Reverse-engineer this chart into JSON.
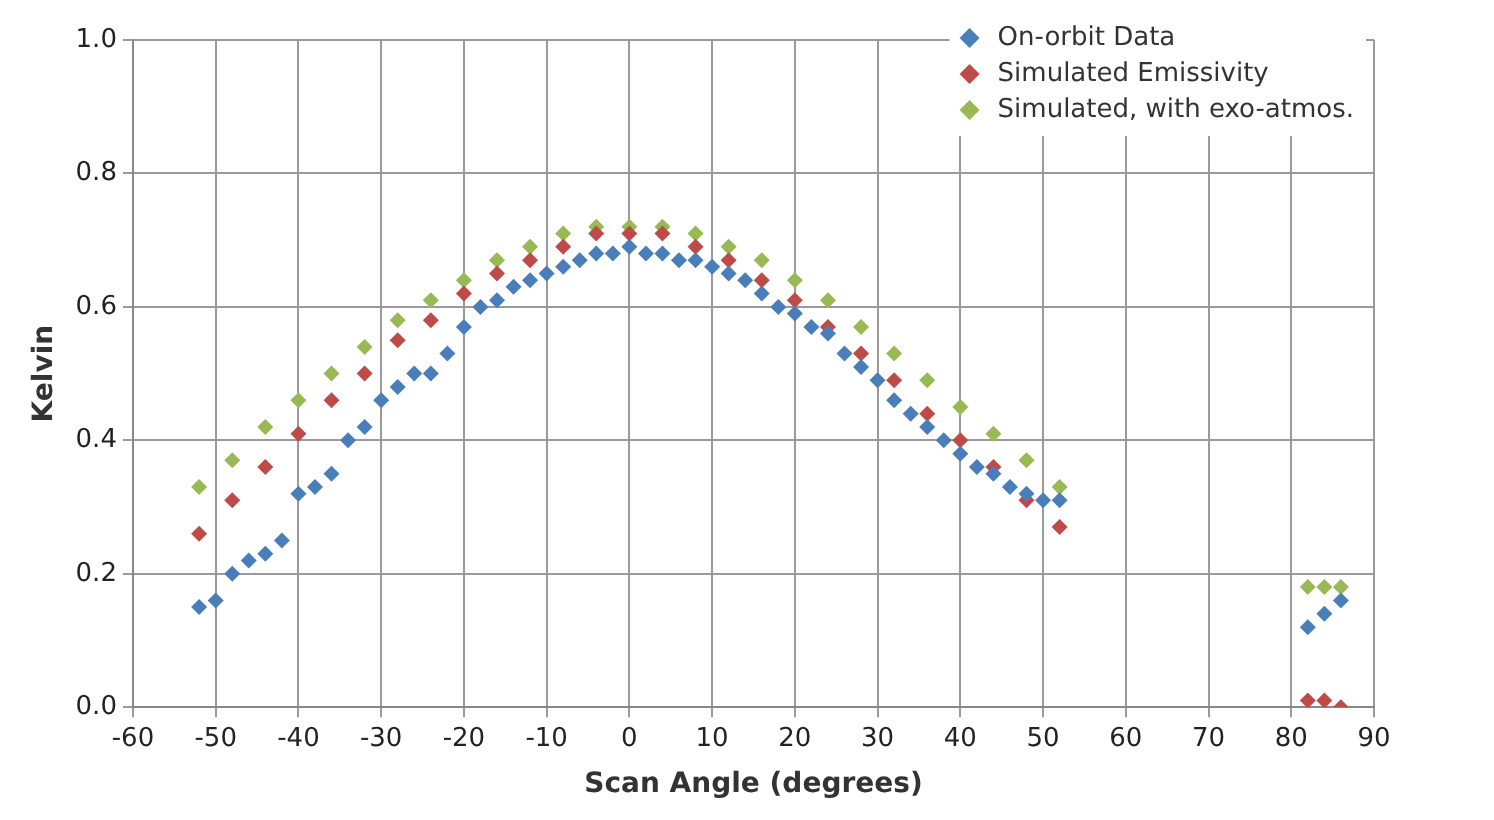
{
  "chart_data": {
    "type": "scatter",
    "xlabel": "Scan Angle (degrees)",
    "ylabel": "Kelvin",
    "xlim": [
      -60,
      90
    ],
    "xticks": [
      -60,
      -50,
      -40,
      -30,
      -20,
      -10,
      0,
      10,
      20,
      30,
      40,
      50,
      60,
      70,
      80,
      90
    ],
    "ylim": [
      0,
      1
    ],
    "yticks": [
      {
        "value": 0,
        "label": "0.0"
      },
      0.2,
      0.4,
      0.6,
      0.8,
      {
        "value": 1,
        "label": "1.0"
      }
    ],
    "grid": true,
    "legend": "top right",
    "marker": "diamond",
    "series": [
      {
        "name": "On-orbit Data",
        "color": "#4a7ebb",
        "x": [
          -52,
          -50,
          -48,
          -46,
          -44,
          -42,
          -40,
          -38,
          -36,
          -34,
          -32,
          -30,
          -28,
          -26,
          -24,
          -22,
          -20,
          -18,
          -16,
          -14,
          -12,
          -10,
          -8,
          -6,
          -4,
          -2,
          0,
          2,
          4,
          6,
          8,
          10,
          12,
          14,
          16,
          18,
          20,
          22,
          24,
          26,
          28,
          30,
          32,
          34,
          36,
          38,
          40,
          42,
          44,
          46,
          48,
          50,
          52,
          82,
          84,
          86
        ],
        "values": [
          0.15,
          0.16,
          0.2,
          0.22,
          0.23,
          0.25,
          0.32,
          0.33,
          0.35,
          0.4,
          0.42,
          0.46,
          0.48,
          0.5,
          0.5,
          0.53,
          0.57,
          0.6,
          0.61,
          0.63,
          0.64,
          0.65,
          0.66,
          0.67,
          0.68,
          0.68,
          0.69,
          0.68,
          0.68,
          0.67,
          0.67,
          0.66,
          0.65,
          0.64,
          0.62,
          0.6,
          0.59,
          0.57,
          0.56,
          0.53,
          0.51,
          0.49,
          0.46,
          0.44,
          0.42,
          0.4,
          0.38,
          0.36,
          0.35,
          0.33,
          0.32,
          0.31,
          0.31,
          0.12,
          0.14,
          0.16
        ]
      },
      {
        "name": "Simulated Emissivity",
        "color": "#be4b48",
        "x": [
          -52,
          -48,
          -44,
          -40,
          -36,
          -32,
          -28,
          -24,
          -20,
          -16,
          -12,
          -8,
          -4,
          0,
          4,
          8,
          12,
          16,
          20,
          24,
          28,
          32,
          36,
          40,
          44,
          48,
          52,
          82,
          84,
          86
        ],
        "values": [
          0.26,
          0.31,
          0.36,
          0.41,
          0.46,
          0.5,
          0.55,
          0.58,
          0.62,
          0.65,
          0.67,
          0.69,
          0.71,
          0.71,
          0.71,
          0.69,
          0.67,
          0.64,
          0.61,
          0.57,
          0.53,
          0.49,
          0.44,
          0.4,
          0.36,
          0.31,
          0.27,
          0.01,
          0.01,
          0.0
        ]
      },
      {
        "name": "Simulated, with exo-atmos.",
        "color": "#98b954",
        "x": [
          -52,
          -48,
          -44,
          -40,
          -36,
          -32,
          -28,
          -24,
          -20,
          -16,
          -12,
          -8,
          -4,
          0,
          4,
          8,
          12,
          16,
          20,
          24,
          28,
          32,
          36,
          40,
          44,
          48,
          52,
          82,
          84,
          86
        ],
        "values": [
          0.33,
          0.37,
          0.42,
          0.46,
          0.5,
          0.54,
          0.58,
          0.61,
          0.64,
          0.67,
          0.69,
          0.71,
          0.72,
          0.72,
          0.72,
          0.71,
          0.69,
          0.67,
          0.64,
          0.61,
          0.57,
          0.53,
          0.49,
          0.45,
          0.41,
          0.37,
          0.33,
          0.18,
          0.18,
          0.18
        ]
      }
    ]
  }
}
